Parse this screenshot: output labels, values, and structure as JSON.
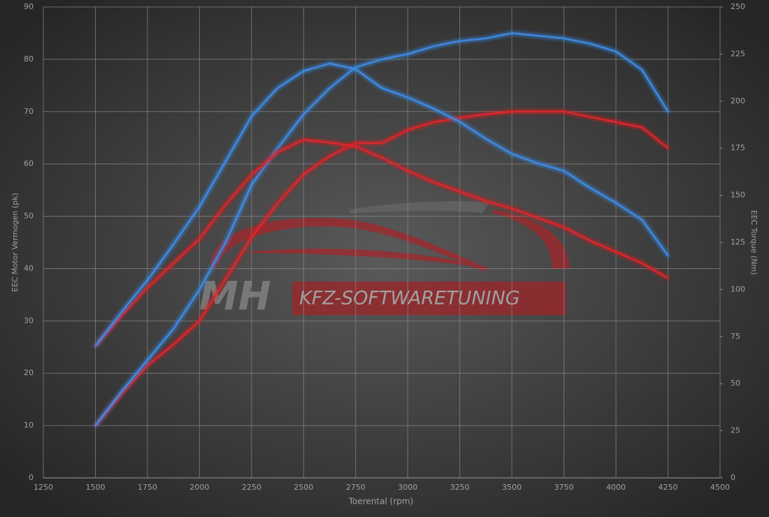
{
  "chart_data": {
    "type": "line",
    "xlabel": "Toerental (rpm)",
    "ylabel": "EEC Motor Vermogen (pk)",
    "y2label": "EEC Torque (Nm)",
    "watermark": {
      "logo": "MH",
      "text": "KFZ-SOFTWARETUNING"
    },
    "x": [
      1500,
      1625,
      1750,
      1875,
      2000,
      2125,
      2250,
      2375,
      2500,
      2625,
      2750,
      2875,
      3000,
      3125,
      3250,
      3375,
      3500,
      3625,
      3750,
      3875,
      4000,
      4125,
      4250
    ],
    "series": [
      {
        "color": "#e0262a",
        "values": [
          10,
          16,
          21.5,
          25.5,
          30,
          38,
          46,
          52.5,
          58,
          61.5,
          64,
          64,
          66.5,
          68,
          68.8,
          69.5,
          70,
          70,
          70,
          69,
          68,
          67,
          63
        ]
      },
      {
        "color": "#3d8be6",
        "values": [
          10,
          16.5,
          22.5,
          28.5,
          36,
          45,
          56,
          63,
          69.5,
          74.5,
          78.5,
          80,
          81,
          82.5,
          83.5,
          84,
          85,
          84.5,
          84,
          83,
          81.5,
          78,
          70
        ]
      },
      {
        "color": "#e0262a",
        "axis": "y2",
        "values": [
          70,
          86,
          101,
          114,
          127,
          145,
          161,
          173,
          179.5,
          178,
          176,
          170,
          163,
          157,
          152,
          147,
          143,
          138,
          133,
          126,
          120,
          114,
          106
        ]
      },
      {
        "color": "#3d8be6",
        "axis": "y2",
        "values": [
          70,
          88,
          105,
          124,
          144,
          168,
          192,
          207,
          216,
          220,
          217,
          207,
          202,
          196,
          189,
          180,
          172,
          167,
          163,
          154,
          146,
          137,
          118
        ]
      }
    ],
    "xlim": [
      1250,
      4500
    ],
    "xticks": [
      1250,
      1500,
      1750,
      2000,
      2250,
      2500,
      2750,
      3000,
      3250,
      3500,
      3750,
      4000,
      4250,
      4500
    ],
    "ylim": [
      0,
      90
    ],
    "yticks": [
      0,
      10,
      20,
      30,
      40,
      50,
      60,
      70,
      80,
      90
    ],
    "y2lim": [
      0,
      250
    ],
    "y2ticks": [
      0,
      25,
      50,
      75,
      100,
      125,
      150,
      175,
      200,
      225,
      250
    ],
    "grid": true
  }
}
